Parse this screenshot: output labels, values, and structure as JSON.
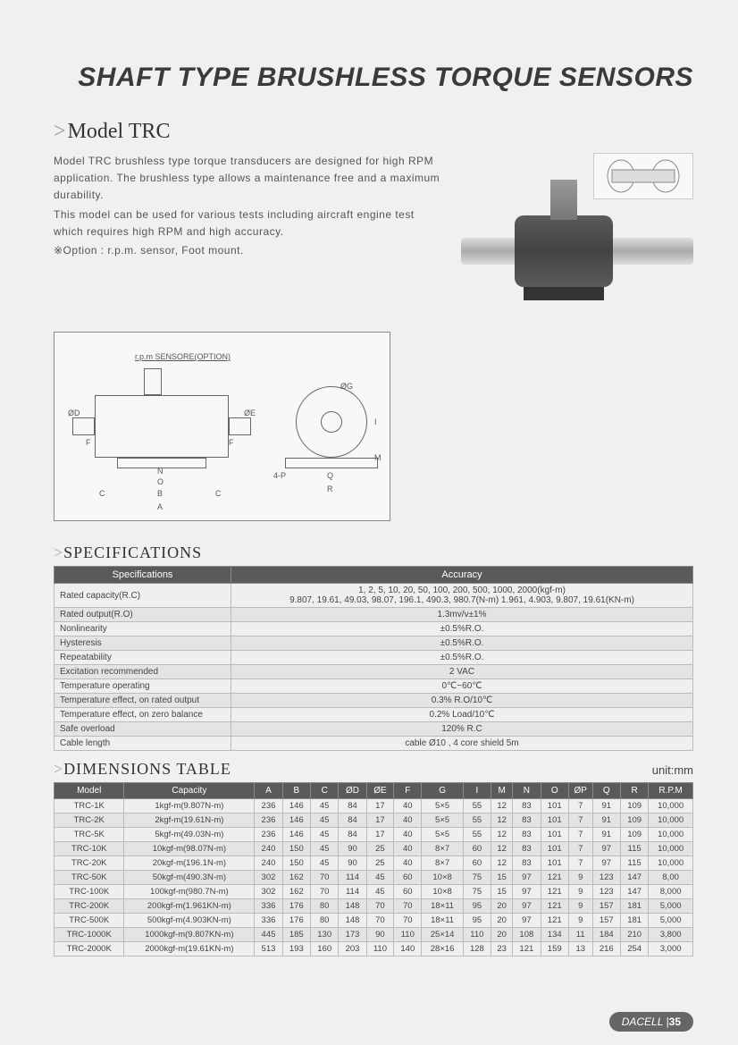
{
  "header": {
    "title": "SHAFT TYPE BRUSHLESS TORQUE SENSORS"
  },
  "model": {
    "title": "Model TRC",
    "p1": "Model TRC brushless type torque transducers are designed for high RPM application. The brushless type allows a maintenance free and a maximum durability.",
    "p2": "This model can be used for various tests including aircraft engine test which requires high RPM and high accuracy.",
    "option": "※Option : r.p.m. sensor, Foot mount."
  },
  "diagram": {
    "rpm_label": "r.p.m SENSORE(OPTION)",
    "dims": [
      "ØD",
      "F",
      "F",
      "ØE",
      "N",
      "O",
      "C",
      "B",
      "C",
      "A",
      "ØG",
      "4-P",
      "Q",
      "R",
      "M",
      "I"
    ]
  },
  "spec": {
    "heading": "SPECIFICATIONS",
    "col1": "Specifications",
    "col2": "Accuracy",
    "rows": [
      {
        "label": "Rated capacity(R.C)",
        "value": "1, 2, 5, 10, 20, 50, 100, 200, 500, 1000, 2000(kgf-m)\n9.807, 19.61, 49.03, 98.07, 196.1, 490.3, 980.7(N-m) 1.961, 4.903, 9.807, 19.61(KN-m)"
      },
      {
        "label": "Rated output(R.O)",
        "value": "1.3mv/v±1%"
      },
      {
        "label": "Nonlinearity",
        "value": "±0.5%R.O."
      },
      {
        "label": "Hysteresis",
        "value": "±0.5%R.O."
      },
      {
        "label": "Repeatability",
        "value": "±0.5%R.O."
      },
      {
        "label": "Excitation recommended",
        "value": "2 VAC"
      },
      {
        "label": "Temperature operating",
        "value": "0℃~60℃"
      },
      {
        "label": "Temperature effect, on rated output",
        "value": "0.3% R.O/10℃"
      },
      {
        "label": "Temperature effect, on zero balance",
        "value": "0.2% Load/10℃"
      },
      {
        "label": "Safe overload",
        "value": "120% R.C"
      },
      {
        "label": "Cable length",
        "value": "cable Ø10 , 4 core shield 5m"
      }
    ]
  },
  "dimensions": {
    "heading": "DIMENSIONS TABLE",
    "unit": "unit:mm",
    "cols": [
      "Model",
      "Capacity",
      "A",
      "B",
      "C",
      "ØD",
      "ØE",
      "F",
      "G",
      "I",
      "M",
      "N",
      "O",
      "ØP",
      "Q",
      "R",
      "R.P.M"
    ],
    "rows": [
      [
        "TRC-1K",
        "1kgf-m(9.807N-m)",
        "236",
        "146",
        "45",
        "84",
        "17",
        "40",
        "5×5",
        "55",
        "12",
        "83",
        "101",
        "7",
        "91",
        "109",
        "10,000"
      ],
      [
        "TRC-2K",
        "2kgf-m(19.61N-m)",
        "236",
        "146",
        "45",
        "84",
        "17",
        "40",
        "5×5",
        "55",
        "12",
        "83",
        "101",
        "7",
        "91",
        "109",
        "10,000"
      ],
      [
        "TRC-5K",
        "5kgf-m(49.03N-m)",
        "236",
        "146",
        "45",
        "84",
        "17",
        "40",
        "5×5",
        "55",
        "12",
        "83",
        "101",
        "7",
        "91",
        "109",
        "10,000"
      ],
      [
        "TRC-10K",
        "10kgf-m(98.07N-m)",
        "240",
        "150",
        "45",
        "90",
        "25",
        "40",
        "8×7",
        "60",
        "12",
        "83",
        "101",
        "7",
        "97",
        "115",
        "10,000"
      ],
      [
        "TRC-20K",
        "20kgf-m(196.1N-m)",
        "240",
        "150",
        "45",
        "90",
        "25",
        "40",
        "8×7",
        "60",
        "12",
        "83",
        "101",
        "7",
        "97",
        "115",
        "10,000"
      ],
      [
        "TRC-50K",
        "50kgf-m(490.3N-m)",
        "302",
        "162",
        "70",
        "114",
        "45",
        "60",
        "10×8",
        "75",
        "15",
        "97",
        "121",
        "9",
        "123",
        "147",
        "8,00"
      ],
      [
        "TRC-100K",
        "100kgf-m(980.7N-m)",
        "302",
        "162",
        "70",
        "114",
        "45",
        "60",
        "10×8",
        "75",
        "15",
        "97",
        "121",
        "9",
        "123",
        "147",
        "8,000"
      ],
      [
        "TRC-200K",
        "200kgf-m(1.961KN-m)",
        "336",
        "176",
        "80",
        "148",
        "70",
        "70",
        "18×11",
        "95",
        "20",
        "97",
        "121",
        "9",
        "157",
        "181",
        "5,000"
      ],
      [
        "TRC-500K",
        "500kgf-m(4.903KN-m)",
        "336",
        "176",
        "80",
        "148",
        "70",
        "70",
        "18×11",
        "95",
        "20",
        "97",
        "121",
        "9",
        "157",
        "181",
        "5,000"
      ],
      [
        "TRC-1000K",
        "1000kgf-m(9.807KN-m)",
        "445",
        "185",
        "130",
        "173",
        "90",
        "110",
        "25×14",
        "110",
        "20",
        "108",
        "134",
        "11",
        "184",
        "210",
        "3,800"
      ],
      [
        "TRC-2000K",
        "2000kgf-m(19.61KN-m)",
        "513",
        "193",
        "160",
        "203",
        "110",
        "140",
        "28×16",
        "128",
        "23",
        "121",
        "159",
        "13",
        "216",
        "254",
        "3,000"
      ]
    ]
  },
  "footer": {
    "brand": "DACELL",
    "page": "35"
  }
}
